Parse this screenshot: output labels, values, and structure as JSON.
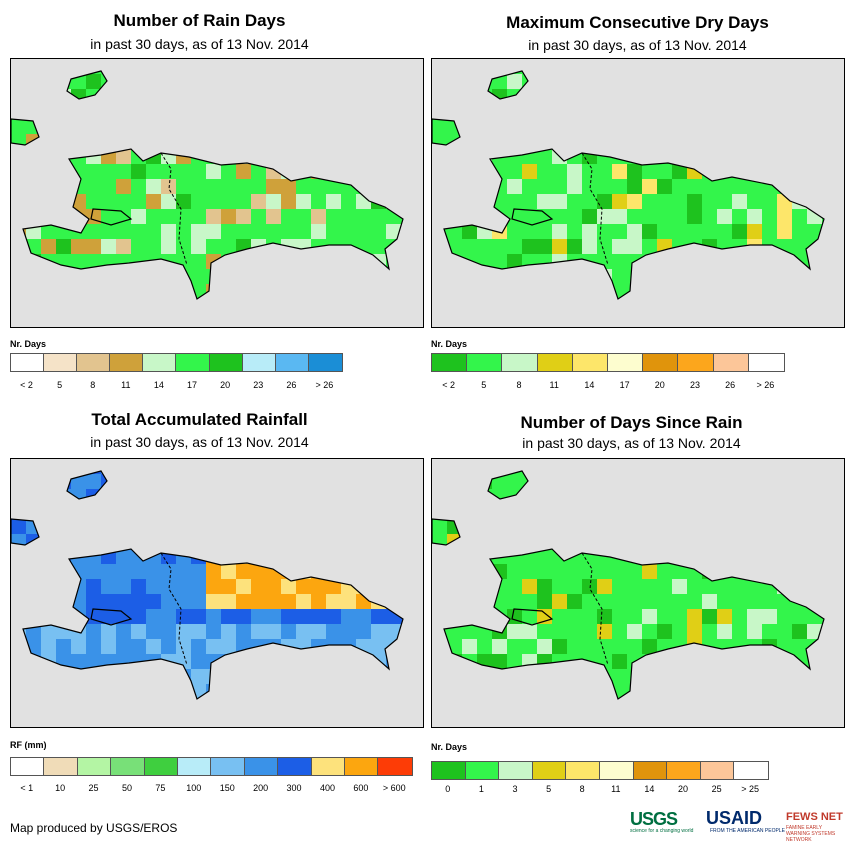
{
  "panels": [
    {
      "title": "Number of Rain Days",
      "subtitle": "in past 30 days, as of 13 Nov. 2014",
      "legend": {
        "title": "Nr. Days",
        "labels": [
          "< 2",
          "5",
          "8",
          "11",
          "14",
          "17",
          "20",
          "23",
          "26",
          "> 26"
        ],
        "colors": [
          "#ffffff",
          "#f5e3c8",
          "#e2c48f",
          "#cfa13a",
          "#c8f7c8",
          "#33f54b",
          "#1ec21e",
          "#b8ecf8",
          "#5ab8f2",
          "#1b8ed6"
        ]
      }
    },
    {
      "title": "Maximum Consecutive Dry Days",
      "subtitle": "in past 30 days, as of 13 Nov. 2014",
      "legend": {
        "title": "Nr. Days",
        "labels": [
          "< 2",
          "5",
          "8",
          "11",
          "14",
          "17",
          "20",
          "23",
          "26",
          "> 26"
        ],
        "colors": [
          "#1ec21e",
          "#33f54b",
          "#c8f7c8",
          "#e0cf16",
          "#fde66a",
          "#fdfdcf",
          "#e0940c",
          "#fca61c",
          "#fcc699",
          "#ffffff"
        ]
      }
    },
    {
      "title": "Total Accumulated Rainfall",
      "subtitle": "in past 30 days, as of 13 Nov. 2014",
      "legend": {
        "title": "RF (mm)",
        "labels": [
          "< 1",
          "10",
          "25",
          "50",
          "75",
          "100",
          "150",
          "200",
          "300",
          "400",
          "600",
          "> 600"
        ],
        "colors": [
          "#ffffff",
          "#f0dcb8",
          "#b4f5a4",
          "#78e078",
          "#3fcf3f",
          "#b8ecf8",
          "#78c0f2",
          "#3a92e8",
          "#1c5ee6",
          "#fde27c",
          "#fca60f",
          "#fd3c06"
        ]
      }
    },
    {
      "title": "Number of Days Since Rain",
      "subtitle": "in past 30 days, as of 13 Nov. 2014",
      "legend": {
        "title": "Nr. Days",
        "labels": [
          "0",
          "1",
          "3",
          "5",
          "8",
          "11",
          "14",
          "20",
          "25",
          "> 25"
        ],
        "colors": [
          "#1ec21e",
          "#33f54b",
          "#c8f7c8",
          "#e0cf16",
          "#fde66a",
          "#fdfdcf",
          "#e0940c",
          "#fca61c",
          "#fcc699",
          "#ffffff"
        ]
      }
    }
  ],
  "credit": "Map produced by USGS/EROS",
  "logos": {
    "usgs": "USGS",
    "usgs_tag": "science for a changing world",
    "usaid": "USAID",
    "usaid_tag": "FROM THE AMERICAN PEOPLE",
    "fews": "FEWS NET",
    "fews_tag": "FAMINE EARLY WARNING SYSTEMS NETWORK"
  }
}
